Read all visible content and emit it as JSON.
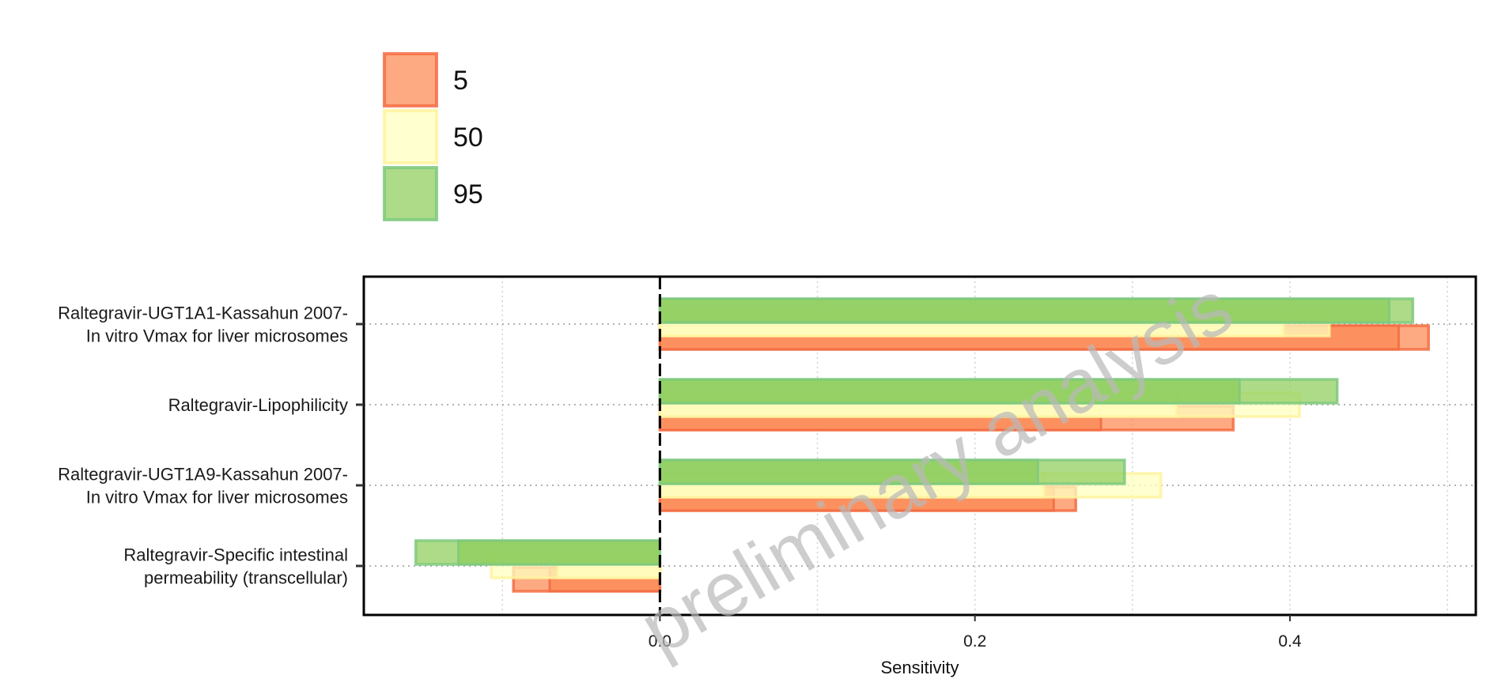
{
  "chart_data": {
    "type": "bar",
    "orientation": "horizontal",
    "xlabel": "Sensitivity",
    "ylabel": "",
    "xlim": [
      -0.188,
      0.518
    ],
    "x_ticks": [
      "0.0",
      "0.2",
      "0.4"
    ],
    "x_tick_values": [
      0.0,
      0.2,
      0.4
    ],
    "grid": true,
    "legend_position": "top-left",
    "watermark": "preliminary analysis",
    "categories": [
      [
        "Raltegravir-UGT1A1-Kassahun 2007-",
        "In vitro Vmax for liver microsomes"
      ],
      [
        "Raltegravir-Lipophilicity"
      ],
      [
        "Raltegravir-UGT1A9-Kassahun 2007-",
        "In vitro Vmax for liver microsomes"
      ],
      [
        "Raltegravir-Specific intestinal",
        "permeability (transcellular)"
      ]
    ],
    "series": [
      {
        "name": "5",
        "fill": "#fc8d59",
        "stroke": "#f46d43",
        "values": [
          0.469,
          0.28,
          0.25,
          -0.07
        ],
        "outer_values": [
          0.488,
          0.364,
          0.264,
          -0.093
        ]
      },
      {
        "name": "50",
        "fill": "#ffffbf",
        "stroke": "#fff3a0",
        "values": [
          0.396,
          0.328,
          0.244,
          -0.065
        ],
        "outer_values": [
          0.425,
          0.406,
          0.318,
          -0.107
        ]
      },
      {
        "name": "95",
        "fill": "#91cf60",
        "stroke": "#7fc97f",
        "values": [
          0.463,
          0.368,
          0.24,
          -0.128
        ],
        "outer_values": [
          0.478,
          0.43,
          0.295,
          -0.155
        ]
      }
    ]
  }
}
